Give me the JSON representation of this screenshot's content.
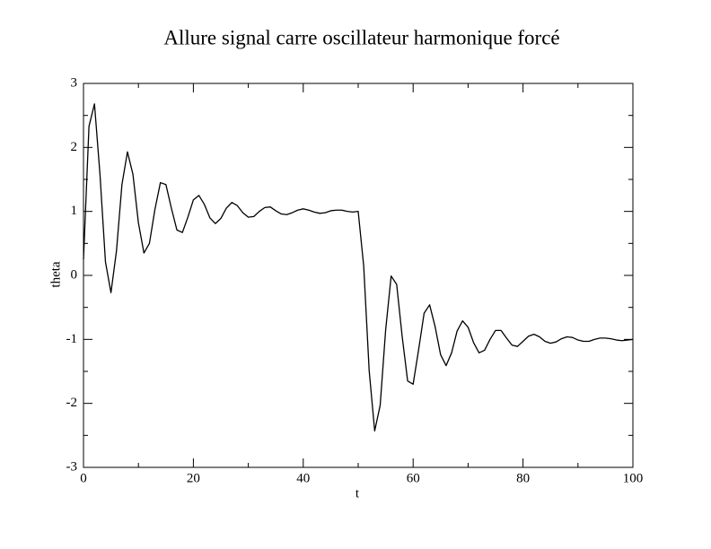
{
  "chart_data": {
    "type": "line",
    "title": "Allure signal carre oscillateur harmonique forcé",
    "x_label": "t",
    "y_label": "theta",
    "xlim": [
      0,
      100
    ],
    "ylim": [
      -3,
      3
    ],
    "xticks": [
      0,
      20,
      40,
      60,
      80,
      100
    ],
    "yticks": [
      -3,
      -2,
      -1,
      0,
      1,
      2,
      3
    ],
    "xminorticks": [
      10,
      30,
      50,
      70,
      90
    ],
    "yminorticks": [
      -2.5,
      -1.5,
      -0.5,
      0.5,
      1.5,
      2.5
    ],
    "x": [
      0,
      1,
      2,
      3,
      4,
      5,
      6,
      7,
      8,
      9,
      10,
      11,
      12,
      13,
      14,
      15,
      16,
      17,
      18,
      19,
      20,
      21,
      22,
      23,
      24,
      25,
      26,
      27,
      28,
      29,
      30,
      31,
      32,
      33,
      34,
      35,
      36,
      37,
      38,
      39,
      40,
      41,
      42,
      43,
      44,
      45,
      46,
      47,
      48,
      49,
      50,
      51,
      52,
      53,
      54,
      55,
      56,
      57,
      58,
      59,
      60,
      61,
      62,
      63,
      64,
      65,
      66,
      67,
      68,
      69,
      70,
      71,
      72,
      73,
      74,
      75,
      76,
      77,
      78,
      79,
      80,
      81,
      82,
      83,
      84,
      85,
      86,
      87,
      88,
      89,
      90,
      91,
      92,
      93,
      94,
      95,
      96,
      97,
      98,
      99,
      100
    ],
    "series": [
      {
        "name": "theta",
        "color": "#000000",
        "values": [
          0.25,
          2.33,
          2.68,
          1.58,
          0.21,
          -0.27,
          0.38,
          1.42,
          1.93,
          1.58,
          0.82,
          0.35,
          0.5,
          1.03,
          1.45,
          1.42,
          1.05,
          0.71,
          0.67,
          0.91,
          1.18,
          1.25,
          1.11,
          0.9,
          0.81,
          0.89,
          1.05,
          1.14,
          1.09,
          0.98,
          0.91,
          0.92,
          1.0,
          1.06,
          1.07,
          1.01,
          0.96,
          0.95,
          0.98,
          1.02,
          1.04,
          1.02,
          0.99,
          0.97,
          0.98,
          1.01,
          1.02,
          1.02,
          1.0,
          0.99,
          1.0,
          0.15,
          -1.49,
          -2.43,
          -2.03,
          -0.85,
          -0.01,
          -0.14,
          -0.95,
          -1.65,
          -1.7,
          -1.16,
          -0.59,
          -0.46,
          -0.8,
          -1.24,
          -1.41,
          -1.21,
          -0.87,
          -0.71,
          -0.81,
          -1.05,
          -1.21,
          -1.17,
          -1.0,
          -0.86,
          -0.86,
          -0.98,
          -1.09,
          -1.11,
          -1.03,
          -0.95,
          -0.92,
          -0.96,
          -1.03,
          -1.06,
          -1.04,
          -0.99,
          -0.96,
          -0.97,
          -1.01,
          -1.03,
          -1.03,
          -1.0,
          -0.98,
          -0.98,
          -0.99,
          -1.01,
          -1.02,
          -1.01,
          -1.0
        ]
      }
    ]
  }
}
